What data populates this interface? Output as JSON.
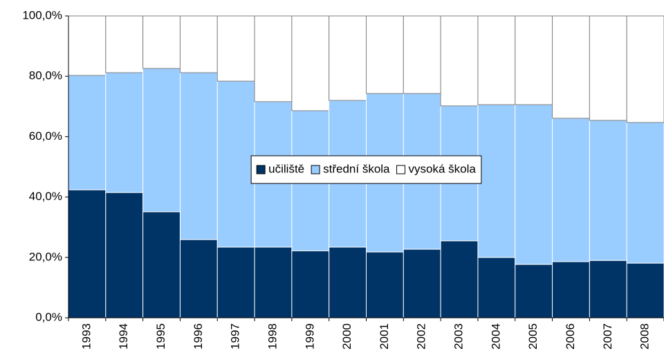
{
  "chart_data": {
    "type": "stacked_bar",
    "categories": [
      "1993",
      "1994",
      "1995",
      "1996",
      "1997",
      "1998",
      "1999",
      "2000",
      "2001",
      "2002",
      "2003",
      "2004",
      "2005",
      "2006",
      "2007",
      "2008"
    ],
    "series": [
      {
        "name": "učiliště",
        "color": "#003366",
        "values": [
          42.4,
          41.5,
          35.1,
          25.9,
          23.4,
          23.4,
          22.2,
          23.4,
          21.8,
          22.7,
          25.5,
          20.0,
          17.7,
          18.6,
          19.0,
          18.1
        ]
      },
      {
        "name": "střední škola",
        "color": "#99ccff",
        "values": [
          37.9,
          39.7,
          47.5,
          55.3,
          55.0,
          48.2,
          46.4,
          48.6,
          52.5,
          51.6,
          44.7,
          50.6,
          52.9,
          47.5,
          46.4,
          46.6
        ]
      },
      {
        "name": "vysoká škola",
        "color": "#ffffff",
        "values": [
          19.7,
          18.8,
          17.4,
          18.8,
          21.6,
          28.4,
          31.4,
          28.0,
          25.7,
          25.7,
          29.8,
          29.4,
          29.4,
          33.9,
          34.6,
          35.3
        ]
      }
    ],
    "ylim": [
      0,
      100
    ],
    "yticks": [
      {
        "value": 0,
        "label": "0,0%"
      },
      {
        "value": 20,
        "label": "20,0%"
      },
      {
        "value": 40,
        "label": "40,0%"
      },
      {
        "value": 60,
        "label": "60,0%"
      },
      {
        "value": 80,
        "label": "80,0%"
      },
      {
        "value": 100,
        "label": "100,0%"
      }
    ],
    "legend": "center"
  }
}
